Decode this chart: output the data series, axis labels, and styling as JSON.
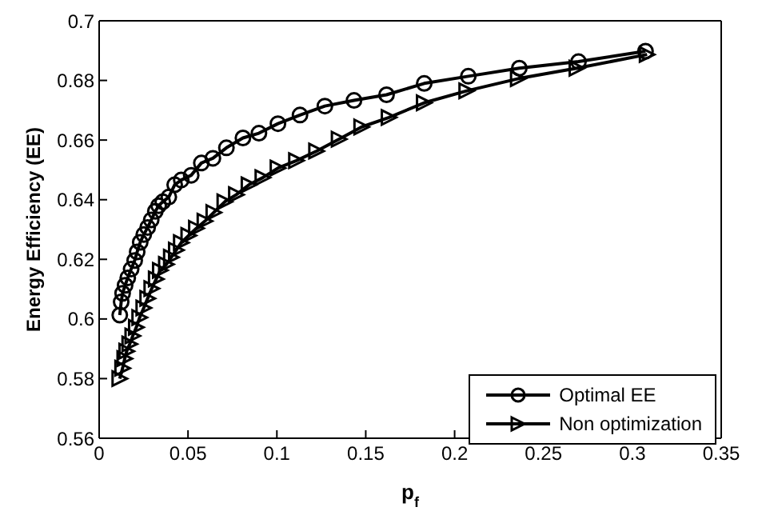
{
  "chart_data": {
    "type": "line",
    "xlabel": "p$_{f}$",
    "ylabel": "Energy Efficiency (EE)",
    "xlim": [
      0,
      0.35
    ],
    "xticks": [
      0,
      0.05,
      0.1,
      0.15,
      0.2,
      0.25,
      0.3,
      0.35
    ],
    "ylim": [
      0.56,
      0.7
    ],
    "yticks": [
      0.56,
      0.58,
      0.6,
      0.62,
      0.64,
      0.66,
      0.68,
      0.7
    ],
    "legend": "bottom right",
    "line_style": "solid",
    "series": [
      {
        "name": "Optimal EE",
        "color": "#000000",
        "marker": "circle",
        "x": [
          0.0116,
          0.0124,
          0.0132,
          0.0146,
          0.0161,
          0.018,
          0.02,
          0.0214,
          0.0231,
          0.0251,
          0.0273,
          0.0293,
          0.0316,
          0.0335,
          0.0358,
          0.0392,
          0.0425,
          0.0462,
          0.0518,
          0.0575,
          0.064,
          0.0716,
          0.0809,
          0.0899,
          0.1006,
          0.113,
          0.127,
          0.1434,
          0.1617,
          0.1829,
          0.2077,
          0.2364,
          0.2697,
          0.3074
        ],
        "values": [
          0.6013,
          0.6057,
          0.6086,
          0.6113,
          0.6138,
          0.6167,
          0.6196,
          0.6225,
          0.6257,
          0.6283,
          0.6307,
          0.6332,
          0.6361,
          0.638,
          0.6393,
          0.6409,
          0.645,
          0.6466,
          0.6482,
          0.6523,
          0.6539,
          0.6574,
          0.6607,
          0.6623,
          0.6655,
          0.6684,
          0.6714,
          0.6733,
          0.6752,
          0.679,
          0.6814,
          0.6841,
          0.6863,
          0.6898
        ]
      },
      {
        "name": "Non optimization",
        "color": "#000000",
        "marker": "triangle",
        "x": [
          0.0116,
          0.0132,
          0.0144,
          0.0155,
          0.0172,
          0.0189,
          0.0209,
          0.0228,
          0.0251,
          0.0273,
          0.0296,
          0.0321,
          0.0344,
          0.0378,
          0.0406,
          0.0434,
          0.0462,
          0.0504,
          0.0547,
          0.0595,
          0.0645,
          0.0707,
          0.0772,
          0.0843,
          0.0921,
          0.1006,
          0.111,
          0.1223,
          0.135,
          0.1477,
          0.1631,
          0.1829,
          0.2068,
          0.2358,
          0.2688,
          0.3083
        ],
        "values": [
          0.58,
          0.5835,
          0.5867,
          0.5892,
          0.5916,
          0.5943,
          0.5972,
          0.6005,
          0.6037,
          0.6069,
          0.6102,
          0.6134,
          0.6163,
          0.6183,
          0.6207,
          0.6231,
          0.6256,
          0.628,
          0.6304,
          0.6328,
          0.6357,
          0.6393,
          0.6417,
          0.645,
          0.6474,
          0.6506,
          0.6531,
          0.6563,
          0.6603,
          0.6644,
          0.6676,
          0.6725,
          0.6765,
          0.6806,
          0.6841,
          0.6887
        ]
      }
    ]
  }
}
